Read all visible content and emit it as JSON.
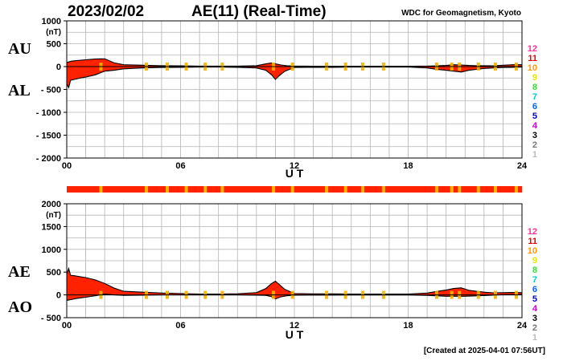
{
  "header": {
    "date": "2023/02/02",
    "title": "AE(11) (Real-Time)",
    "credit": "WDC for Geomagnetism, Kyoto"
  },
  "footer": {
    "created": "[Created at 2025-04-01 07:56UT]"
  },
  "colors": {
    "fill": "#ff2200",
    "quality": "#f2b400",
    "grid": "#b4b4b4"
  },
  "legend": [
    {
      "label": "12",
      "color": "#ff3399"
    },
    {
      "label": "11",
      "color": "#ee0000"
    },
    {
      "label": "10",
      "color": "#ff9900"
    },
    {
      "label": "9",
      "color": "#e6e600"
    },
    {
      "label": "8",
      "color": "#33dd33"
    },
    {
      "label": "7",
      "color": "#00cccc"
    },
    {
      "label": "6",
      "color": "#0066ff"
    },
    {
      "label": "5",
      "color": "#0000cc"
    },
    {
      "label": "4",
      "color": "#cc00cc"
    },
    {
      "label": "3",
      "color": "#000000"
    },
    {
      "label": "2",
      "color": "#777777"
    },
    {
      "label": "1",
      "color": "#bbbbbb"
    }
  ],
  "quality_strip": {
    "xlim": [
      0,
      24
    ],
    "minor_station_hours": [
      1.8,
      4.2,
      5.3,
      6.3,
      7.3,
      8.2,
      10.9,
      11.9,
      13.7,
      14.7,
      15.6,
      16.7,
      19.5,
      20.3,
      20.7,
      21.7,
      22.6,
      23.7
    ]
  },
  "chart_data": [
    {
      "type": "area",
      "series": [
        {
          "name": "AU",
          "x": [
            0,
            0.25,
            0.5,
            1,
            1.5,
            2,
            2.5,
            3,
            4,
            5,
            6,
            7,
            8,
            9,
            10,
            10.5,
            10.8,
            11,
            11.3,
            11.6,
            12,
            13,
            14,
            15,
            16,
            17,
            18,
            19,
            19.5,
            20,
            20.4,
            20.8,
            21.2,
            21.6,
            22,
            22.5,
            23,
            23.5,
            24
          ],
          "values": [
            90,
            120,
            130,
            150,
            165,
            170,
            80,
            40,
            30,
            20,
            15,
            10,
            10,
            10,
            20,
            60,
            80,
            60,
            35,
            20,
            10,
            8,
            8,
            8,
            8,
            8,
            8,
            10,
            15,
            25,
            40,
            35,
            25,
            20,
            20,
            15,
            30,
            40,
            40
          ]
        },
        {
          "name": "AL",
          "x": [
            0,
            0.1,
            0.2,
            0.4,
            0.7,
            1,
            1.5,
            2,
            2.5,
            3,
            4,
            5,
            6,
            7,
            8,
            9,
            10,
            10.5,
            10.8,
            11,
            11.2,
            11.5,
            12,
            13,
            14,
            15,
            16,
            17,
            18,
            19,
            19.5,
            20,
            20.4,
            20.8,
            21.2,
            21.6,
            22,
            22.5,
            23,
            23.5,
            24
          ],
          "values": [
            -380,
            -460,
            -300,
            -280,
            -250,
            -230,
            -180,
            -100,
            -80,
            -50,
            -30,
            -20,
            -15,
            -10,
            -10,
            -15,
            -30,
            -80,
            -180,
            -280,
            -200,
            -100,
            -20,
            -15,
            -15,
            -10,
            -10,
            -10,
            -10,
            -30,
            -60,
            -80,
            -100,
            -120,
            -80,
            -60,
            -40,
            -30,
            -20,
            -15,
            -10
          ]
        }
      ],
      "xlabel": "U T",
      "ylabel": "(nT)",
      "series_labels": [
        "AU",
        "AL"
      ],
      "xlim": [
        0,
        24
      ],
      "ylim": [
        -2000,
        1000
      ],
      "xticks": [
        0,
        6,
        12,
        18,
        24
      ],
      "xtick_labels": [
        "00",
        "06",
        "12",
        "18",
        "24"
      ],
      "yticks": [
        -2000,
        -1500,
        -1000,
        -500,
        0,
        500,
        1000
      ],
      "ytick_labels": [
        "- 2000",
        "- 1500",
        "- 1000",
        "- 500",
        "0",
        "500",
        "1000"
      ],
      "grid": true
    },
    {
      "type": "area",
      "series": [
        {
          "name": "AE",
          "x": [
            0,
            0.1,
            0.2,
            0.4,
            0.7,
            1,
            1.5,
            2,
            2.5,
            3,
            4,
            5,
            6,
            7,
            8,
            9,
            10,
            10.5,
            10.8,
            11,
            11.2,
            11.5,
            12,
            13,
            14,
            15,
            16,
            17,
            18,
            19,
            19.5,
            20,
            20.4,
            20.8,
            21.2,
            21.6,
            22,
            22.5,
            23,
            23.5,
            24
          ],
          "values": [
            450,
            580,
            430,
            420,
            400,
            380,
            330,
            250,
            150,
            80,
            60,
            40,
            30,
            20,
            20,
            25,
            50,
            140,
            250,
            300,
            230,
            120,
            30,
            23,
            23,
            18,
            18,
            18,
            18,
            40,
            75,
            105,
            140,
            155,
            100,
            80,
            60,
            45,
            50,
            55,
            50
          ]
        },
        {
          "name": "AO",
          "x": [
            0,
            0.25,
            0.5,
            1,
            1.5,
            2,
            2.5,
            3,
            4,
            5,
            6,
            7,
            8,
            9,
            10,
            10.5,
            10.8,
            11,
            11.3,
            11.6,
            12,
            13,
            14,
            15,
            16,
            17,
            18,
            19,
            20,
            21,
            22,
            23,
            24
          ],
          "values": [
            -120,
            -100,
            -80,
            -50,
            -20,
            20,
            0,
            -10,
            -5,
            0,
            0,
            0,
            0,
            0,
            -5,
            -10,
            -40,
            -90,
            -40,
            -20,
            -5,
            -3,
            -3,
            -1,
            -1,
            -1,
            -1,
            -10,
            -30,
            -30,
            -15,
            5,
            10
          ]
        }
      ],
      "xlabel": "U T",
      "ylabel": "(nT)",
      "series_labels": [
        "AE",
        "AO"
      ],
      "xlim": [
        0,
        24
      ],
      "ylim": [
        -500,
        2000
      ],
      "xticks": [
        0,
        6,
        12,
        18,
        24
      ],
      "xtick_labels": [
        "00",
        "06",
        "12",
        "18",
        "24"
      ],
      "yticks": [
        -500,
        0,
        500,
        1000,
        1500,
        2000
      ],
      "ytick_labels": [
        "- 500",
        "0",
        "500",
        "1000",
        "1500",
        "2000"
      ],
      "grid": true
    }
  ]
}
